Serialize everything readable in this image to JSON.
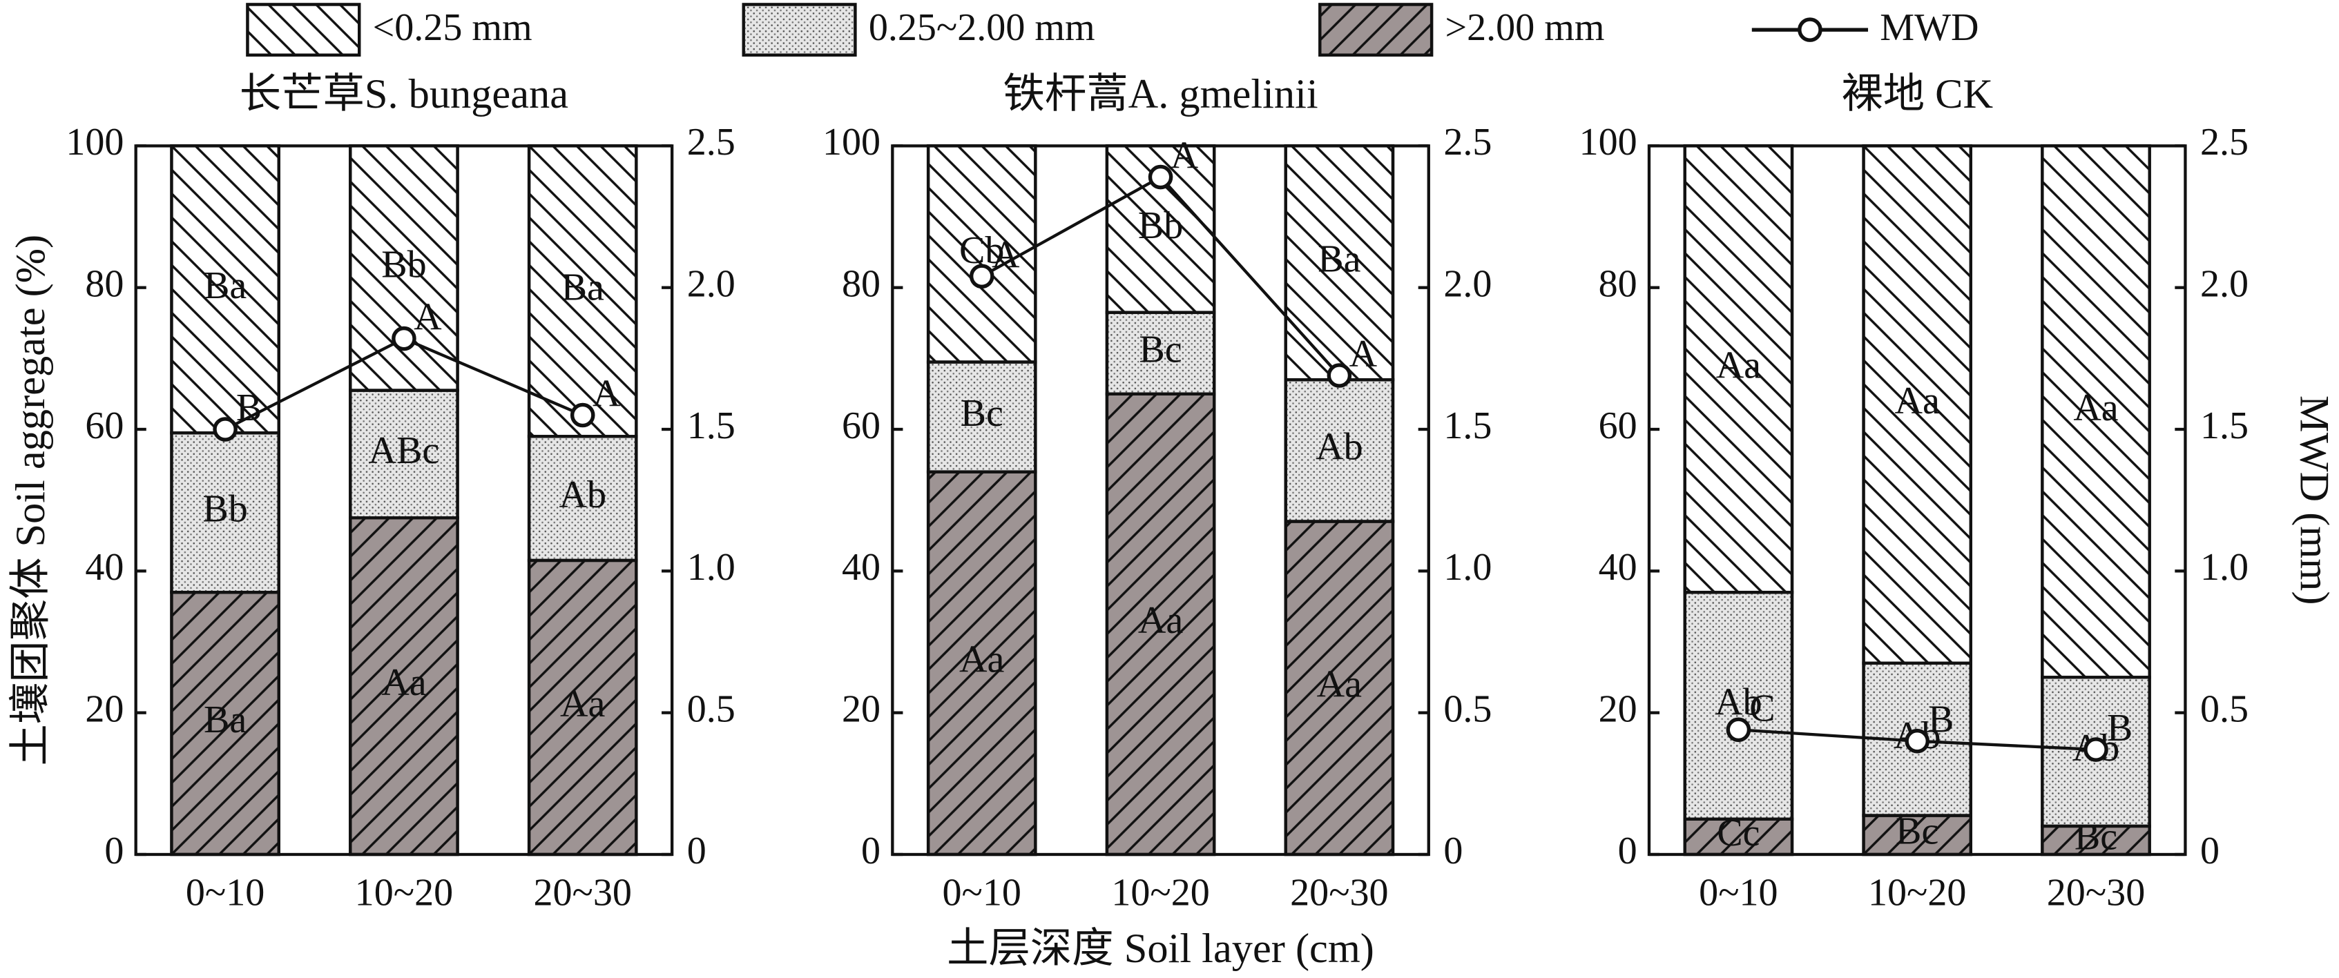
{
  "chart_data": [
    {
      "type": "bar",
      "stacked": true,
      "title": "长芒草S. bungeana",
      "ylabel": "土壤团聚体 Soil aggregate (%)",
      "categories": [
        "0~10",
        "10~20",
        "20~30"
      ],
      "ylim": [
        0,
        100
      ],
      "yticks": [
        0,
        20,
        40,
        60,
        80,
        100
      ],
      "y2lim": [
        0,
        2.5
      ],
      "y2ticks": [
        0,
        0.5,
        {
          "value": 1,
          "label": "1.0"
        },
        1.5,
        {
          "value": 2,
          "label": "2.0"
        },
        2.5
      ],
      "series": [
        {
          "name": ">2.00 mm",
          "color": "#9e9494",
          "pattern": "slash",
          "values": [
            37,
            47.5,
            41.5
          ],
          "letters": [
            "Ba",
            "Aa",
            "Aa"
          ]
        },
        {
          "name": "0.25~2.00 mm",
          "color": "#e6e6e6",
          "pattern": "dots",
          "values": [
            22.5,
            18,
            17.5
          ],
          "letters": [
            "Bb",
            "ABc",
            "Ab"
          ]
        },
        {
          "name": "<0.25 mm",
          "color": "#ffffff",
          "pattern": "backslash",
          "values": [
            40.5,
            34.5,
            41
          ],
          "letters": [
            "Ba",
            "Bb",
            "Ba"
          ]
        },
        {
          "name": "MWD",
          "type": "line",
          "axis": "y2",
          "color": "#111111",
          "values": [
            1.5,
            1.82,
            1.55
          ],
          "letters": [
            "B",
            "A",
            "A"
          ]
        }
      ]
    },
    {
      "type": "bar",
      "stacked": true,
      "title": "铁杆蒿A. gmelinii",
      "xlabel": "土层深度 Soil layer (cm)",
      "categories": [
        "0~10",
        "10~20",
        "20~30"
      ],
      "ylim": [
        0,
        100
      ],
      "yticks": [
        0,
        20,
        40,
        60,
        80,
        100
      ],
      "y2lim": [
        0,
        2.5
      ],
      "y2ticks": [
        0,
        0.5,
        {
          "value": 1,
          "label": "1.0"
        },
        1.5,
        {
          "value": 2,
          "label": "2.0"
        },
        2.5
      ],
      "series": [
        {
          "color": "#9e9494",
          "pattern": "slash",
          "values": [
            54,
            65,
            47
          ],
          "letters": [
            "Aa",
            "Aa",
            "Aa"
          ]
        },
        {
          "color": "#e6e6e6",
          "pattern": "dots",
          "values": [
            15.5,
            11.5,
            20
          ],
          "letters": [
            "Bc",
            "Bc",
            "Ab"
          ]
        },
        {
          "color": "#ffffff",
          "pattern": "backslash",
          "values": [
            30.5,
            23.5,
            33
          ],
          "letters": [
            "Cb",
            "Bb",
            "Ba"
          ]
        },
        {
          "type": "line",
          "axis": "y2",
          "color": "#111111",
          "values": [
            2.04,
            2.39,
            1.69
          ],
          "letters": [
            "A",
            "A",
            "A"
          ]
        }
      ]
    },
    {
      "type": "bar",
      "stacked": true,
      "title": "裸地 CK",
      "y2label": "MWD (mm)",
      "categories": [
        "0~10",
        "10~20",
        "20~30"
      ],
      "ylim": [
        0,
        100
      ],
      "yticks": [
        0,
        20,
        40,
        60,
        80,
        100
      ],
      "y2lim": [
        0,
        2.5
      ],
      "y2ticks": [
        0,
        0.5,
        {
          "value": 1,
          "label": "1.0"
        },
        1.5,
        {
          "value": 2,
          "label": "2.0"
        },
        2.5
      ],
      "series": [
        {
          "color": "#9e9494",
          "pattern": "slash",
          "values": [
            5,
            5.5,
            4
          ],
          "letters": [
            "Cc",
            "Bc",
            "Bc"
          ]
        },
        {
          "color": "#e6e6e6",
          "pattern": "dots",
          "values": [
            32,
            21.5,
            21
          ],
          "letters": [
            "Ab",
            "Ab",
            "Ab"
          ]
        },
        {
          "color": "#ffffff",
          "pattern": "backslash",
          "values": [
            63,
            73,
            75
          ],
          "letters": [
            "Aa",
            "Aa",
            "Aa"
          ]
        },
        {
          "type": "line",
          "axis": "y2",
          "color": "#111111",
          "values": [
            0.44,
            0.4,
            0.37
          ],
          "letters": [
            "C",
            "B",
            "B"
          ]
        }
      ]
    }
  ]
}
